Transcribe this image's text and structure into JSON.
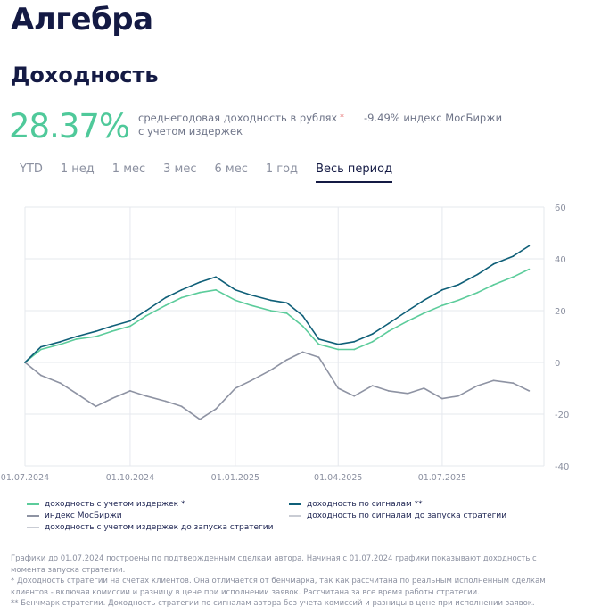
{
  "header": {
    "title": "Алгебра",
    "subtitle": "Доходность"
  },
  "stats": {
    "annual_return": "28.37%",
    "annual_return_desc_line1": "среднегодовая доходность в рублях",
    "annual_return_desc_star": "*",
    "annual_return_desc_line2": "с учетом издержек",
    "benchmark": "-9.49% индекс МосБиржи"
  },
  "tabs": [
    {
      "label": "YTD"
    },
    {
      "label": "1 нед"
    },
    {
      "label": "1 мес"
    },
    {
      "label": "3 мес"
    },
    {
      "label": "6 мес"
    },
    {
      "label": "1 год"
    },
    {
      "label": "Весь период",
      "active": true
    }
  ],
  "colors": {
    "with_costs": "#5ccc9b",
    "signals": "#0f5f78",
    "index": "#8e93a3",
    "pre_launch": "#c9ccd4",
    "accent": "#4fc99a"
  },
  "chart_data": {
    "type": "line",
    "x_ticks": [
      "01.07.2024",
      "01.10.2024",
      "01.01.2025",
      "01.04.2025",
      "01.07.2025"
    ],
    "y_ticks": [
      60,
      40,
      20,
      0,
      -20,
      -40
    ],
    "ylim": [
      -40,
      60
    ],
    "grid": true,
    "legend_position": "bottom",
    "series": [
      {
        "name": "доходность с учетом издержек *",
        "color": "#5ccc9b",
        "x": [
          "01.07.2024",
          "15.07.2024",
          "01.08.2024",
          "15.08.2024",
          "01.09.2024",
          "15.09.2024",
          "01.10.2024",
          "15.10.2024",
          "01.11.2024",
          "15.11.2024",
          "01.12.2024",
          "15.12.2024",
          "01.01.2025",
          "15.01.2025",
          "01.02.2025",
          "15.02.2025",
          "01.03.2025",
          "15.03.2025",
          "01.04.2025",
          "15.04.2025",
          "01.05.2025",
          "15.05.2025",
          "01.06.2025",
          "15.06.2025",
          "01.07.2025",
          "15.07.2025",
          "01.08.2025",
          "15.08.2025",
          "01.09.2025",
          "15.09.2025"
        ],
        "values": [
          0,
          5,
          7,
          9,
          10,
          12,
          14,
          18,
          22,
          25,
          27,
          28,
          24,
          22,
          20,
          19,
          14,
          7,
          5,
          5,
          8,
          12,
          16,
          19,
          22,
          24,
          27,
          30,
          33,
          36
        ]
      },
      {
        "name": "доходность по сигналам **",
        "color": "#0f5f78",
        "x": [
          "01.07.2024",
          "15.07.2024",
          "01.08.2024",
          "15.08.2024",
          "01.09.2024",
          "15.09.2024",
          "01.10.2024",
          "15.10.2024",
          "01.11.2024",
          "15.11.2024",
          "01.12.2024",
          "15.12.2024",
          "01.01.2025",
          "15.01.2025",
          "01.02.2025",
          "15.02.2025",
          "01.03.2025",
          "15.03.2025",
          "01.04.2025",
          "15.04.2025",
          "01.05.2025",
          "15.05.2025",
          "01.06.2025",
          "15.06.2025",
          "01.07.2025",
          "15.07.2025",
          "01.08.2025",
          "15.08.2025",
          "01.09.2025",
          "15.09.2025"
        ],
        "values": [
          0,
          6,
          8,
          10,
          12,
          14,
          16,
          20,
          25,
          28,
          31,
          33,
          28,
          26,
          24,
          23,
          18,
          9,
          7,
          8,
          11,
          15,
          20,
          24,
          28,
          30,
          34,
          38,
          41,
          45
        ]
      },
      {
        "name": "индекс МосБиржи",
        "color": "#8e93a3",
        "x": [
          "01.07.2024",
          "15.07.2024",
          "01.08.2024",
          "15.08.2024",
          "01.09.2024",
          "15.09.2024",
          "01.10.2024",
          "15.10.2024",
          "01.11.2024",
          "15.11.2024",
          "01.12.2024",
          "15.12.2024",
          "01.01.2025",
          "15.01.2025",
          "01.02.2025",
          "15.02.2025",
          "01.03.2025",
          "15.03.2025",
          "01.04.2025",
          "15.04.2025",
          "01.05.2025",
          "15.05.2025",
          "01.06.2025",
          "15.06.2025",
          "01.07.2025",
          "15.07.2025",
          "01.08.2025",
          "15.08.2025",
          "01.09.2025",
          "15.09.2025"
        ],
        "values": [
          0,
          -5,
          -8,
          -12,
          -17,
          -14,
          -11,
          -13,
          -15,
          -17,
          -22,
          -18,
          -10,
          -7,
          -3,
          1,
          4,
          2,
          -10,
          -13,
          -9,
          -11,
          -12,
          -10,
          -14,
          -13,
          -9,
          -7,
          -8,
          -11
        ]
      }
    ],
    "legend": [
      "доходность с учетом издержек *",
      "доходность по сигналам **",
      "индекс МосБиржи",
      "доходность по сигналам до запуска стратегии",
      "доходность с учетом издержек до запуска стратегии"
    ]
  },
  "footnotes": {
    "line1": "Графики до 01.07.2024 построены по подтвержденным сделкам автора. Начиная с 01.07.2024 графики показывают доходность с",
    "line2": "момента запуска стратегии.",
    "line3": "* Доходность стратегии на счетах клиентов. Она отличается от бенчмарка, так как рассчитана по реальным исполненным сделкам",
    "line4": "клиентов - включая комиссии и разницу в цене при исполнении заявок. Рассчитана за все время работы стратегии.",
    "line5": "** Бенчмарк стратегии. Доходность стратегии по сигналам автора без учета комиссий и разницы в цене при исполнении заявок."
  }
}
